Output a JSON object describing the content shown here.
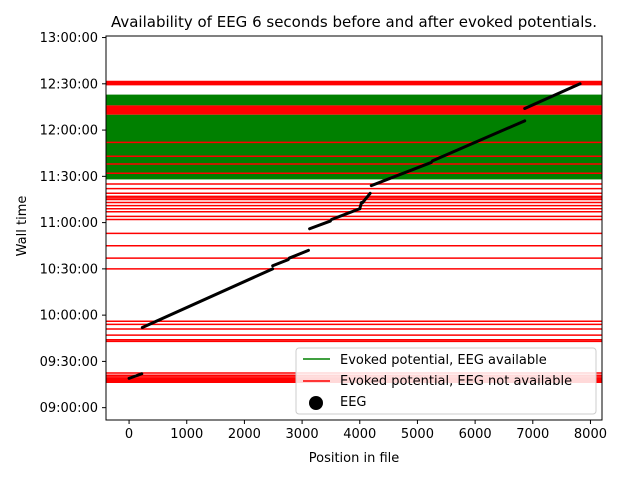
{
  "chart_data": {
    "type": "scatter",
    "title": "Availability of EEG 6 seconds before and after evoked potentials.",
    "xlabel": "Position in file",
    "ylabel": "Wall time",
    "xlim": [
      -400,
      8200
    ],
    "ylim": [
      "08:52:00",
      "13:01:00"
    ],
    "x_ticks": [
      0,
      1000,
      2000,
      3000,
      4000,
      5000,
      6000,
      7000,
      8000
    ],
    "x_tick_labels": [
      "0",
      "1000",
      "2000",
      "3000",
      "4000",
      "5000",
      "6000",
      "7000",
      "8000"
    ],
    "y_ticks": [
      "09:00:00",
      "09:30:00",
      "10:00:00",
      "10:30:00",
      "11:00:00",
      "11:30:00",
      "12:00:00",
      "12:30:00",
      "13:00:00"
    ],
    "legend": {
      "position": "lower right",
      "entries": [
        {
          "label": "Evoked potential, EEG available",
          "color": "#008000",
          "marker": "line"
        },
        {
          "label": "Evoked potential, EEG not available",
          "color": "#ff0000",
          "marker": "line"
        },
        {
          "label": "EEG",
          "color": "#000000",
          "marker": "circle"
        }
      ]
    },
    "colors": {
      "available": "#008000",
      "not_available": "#ff0000",
      "eeg": "#000000"
    },
    "red_lines": [
      "09:16:30",
      "09:17:00",
      "09:17:30",
      "09:18:00",
      "09:18:30",
      "09:19:00",
      "09:20:00",
      "09:21:00",
      "09:22:30",
      "09:43:00",
      "09:44:00",
      "09:47:00",
      "09:51:00",
      "09:54:00",
      "09:56:00",
      "10:30:00",
      "10:37:00",
      "10:45:00",
      "10:53:00",
      "11:02:00",
      "11:04:00",
      "11:07:00",
      "11:09:00",
      "11:11:00",
      "11:13:00",
      "11:15:00",
      "11:16:00",
      "11:17:00",
      "11:19:00",
      "11:22:00",
      "11:25:00",
      "12:29:30",
      "12:30:00",
      "12:30:30",
      "12:31:00",
      "12:31:30"
    ],
    "red_bands": [
      [
        "12:10:00",
        "12:16:00"
      ]
    ],
    "green_bands": [
      [
        "11:28:00",
        "12:10:00"
      ],
      [
        "12:16:00",
        "12:23:00"
      ]
    ],
    "red_on_green": [
      "11:32:00",
      "11:38:00",
      "11:43:00",
      "11:52:00"
    ],
    "eeg_segments": [
      {
        "x": [
          0,
          220
        ],
        "y": [
          "09:19:00",
          "09:22:00"
        ]
      },
      {
        "x": [
          230,
          2490
        ],
        "y": [
          "09:52:00",
          "10:30:00"
        ]
      },
      {
        "x": [
          2490,
          2760
        ],
        "y": [
          "10:32:00",
          "10:36:00"
        ]
      },
      {
        "x": [
          2780,
          3110
        ],
        "y": [
          "10:37:00",
          "10:42:00"
        ]
      },
      {
        "x": [
          3130,
          3490
        ],
        "y": [
          "10:56:00",
          "11:01:00"
        ]
      },
      {
        "x": [
          3510,
          4000
        ],
        "y": [
          "11:02:00",
          "11:09:00"
        ]
      },
      {
        "x": [
          4000,
          4030
        ],
        "y": [
          "11:09:00",
          "11:13:00"
        ]
      },
      {
        "x": [
          4050,
          4180
        ],
        "y": [
          "11:13:00",
          "11:19:00"
        ]
      },
      {
        "x": [
          4200,
          5240
        ],
        "y": [
          "11:24:00",
          "11:39:00"
        ]
      },
      {
        "x": [
          5260,
          6860
        ],
        "y": [
          "11:40:00",
          "12:06:00"
        ]
      },
      {
        "x": [
          6860,
          7820
        ],
        "y": [
          "12:14:00",
          "12:30:00"
        ]
      }
    ]
  }
}
